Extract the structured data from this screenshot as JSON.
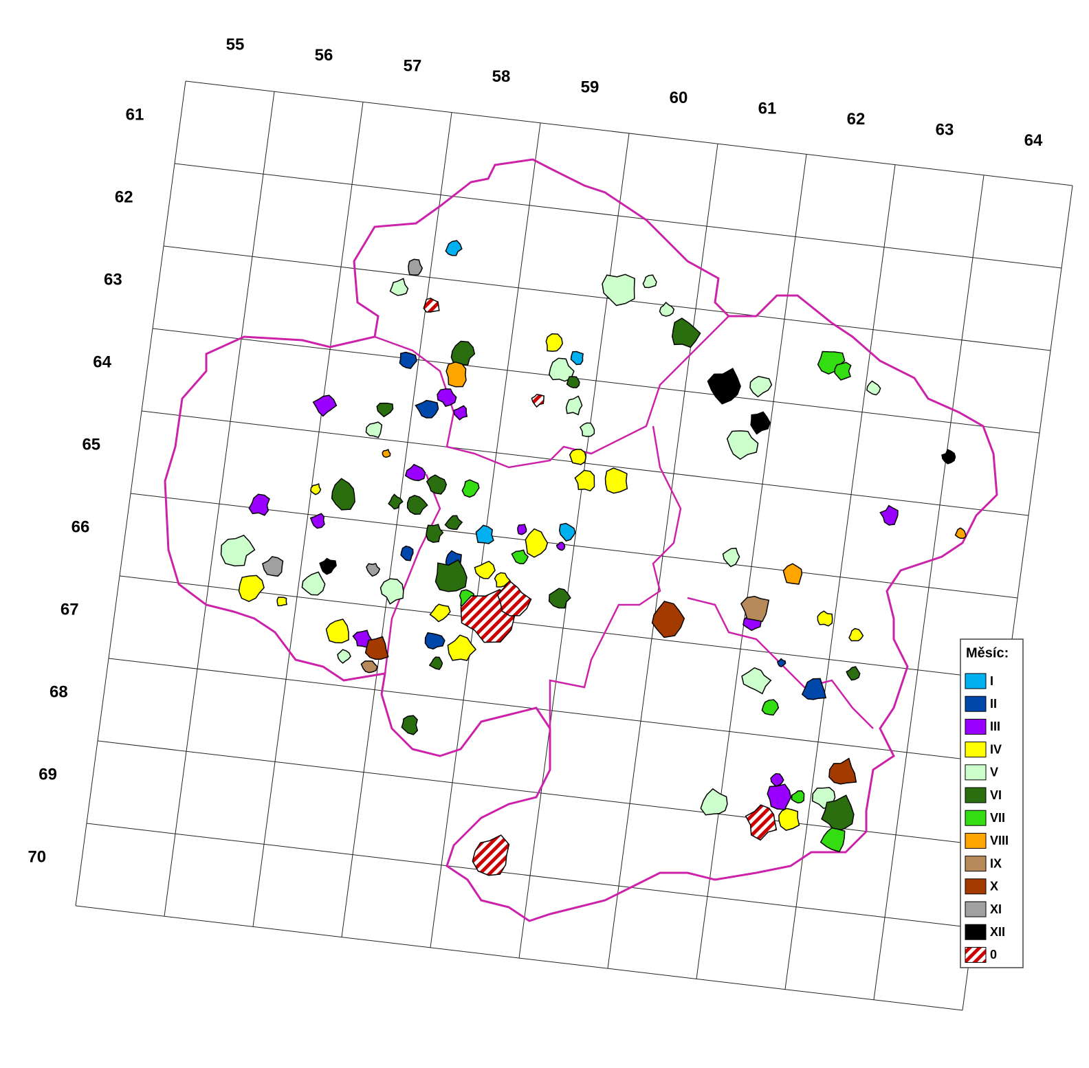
{
  "grid": {
    "columns": [
      "55",
      "56",
      "57",
      "58",
      "59",
      "60",
      "61",
      "62",
      "63",
      "64"
    ],
    "rows": [
      "61",
      "62",
      "63",
      "64",
      "65",
      "66",
      "67",
      "68",
      "69",
      "70"
    ]
  },
  "legend": {
    "title": "Měsíc:",
    "items": [
      {
        "label": "I",
        "color": "#00b0f0"
      },
      {
        "label": "II",
        "color": "#0047ab"
      },
      {
        "label": "III",
        "color": "#9900ff"
      },
      {
        "label": "IV",
        "color": "#ffff00"
      },
      {
        "label": "V",
        "color": "#ccffcc"
      },
      {
        "label": "VI",
        "color": "#2a6e10"
      },
      {
        "label": "VII",
        "color": "#33dd11"
      },
      {
        "label": "VIII",
        "color": "#ffa500"
      },
      {
        "label": "IX",
        "color": "#b8895a"
      },
      {
        "label": "X",
        "color": "#a33a00"
      },
      {
        "label": "XI",
        "color": "#a0a0a0"
      },
      {
        "label": "XII",
        "color": "#000000"
      },
      {
        "label": "0",
        "color": "#cc0000",
        "pattern": "hatch"
      }
    ]
  }
}
